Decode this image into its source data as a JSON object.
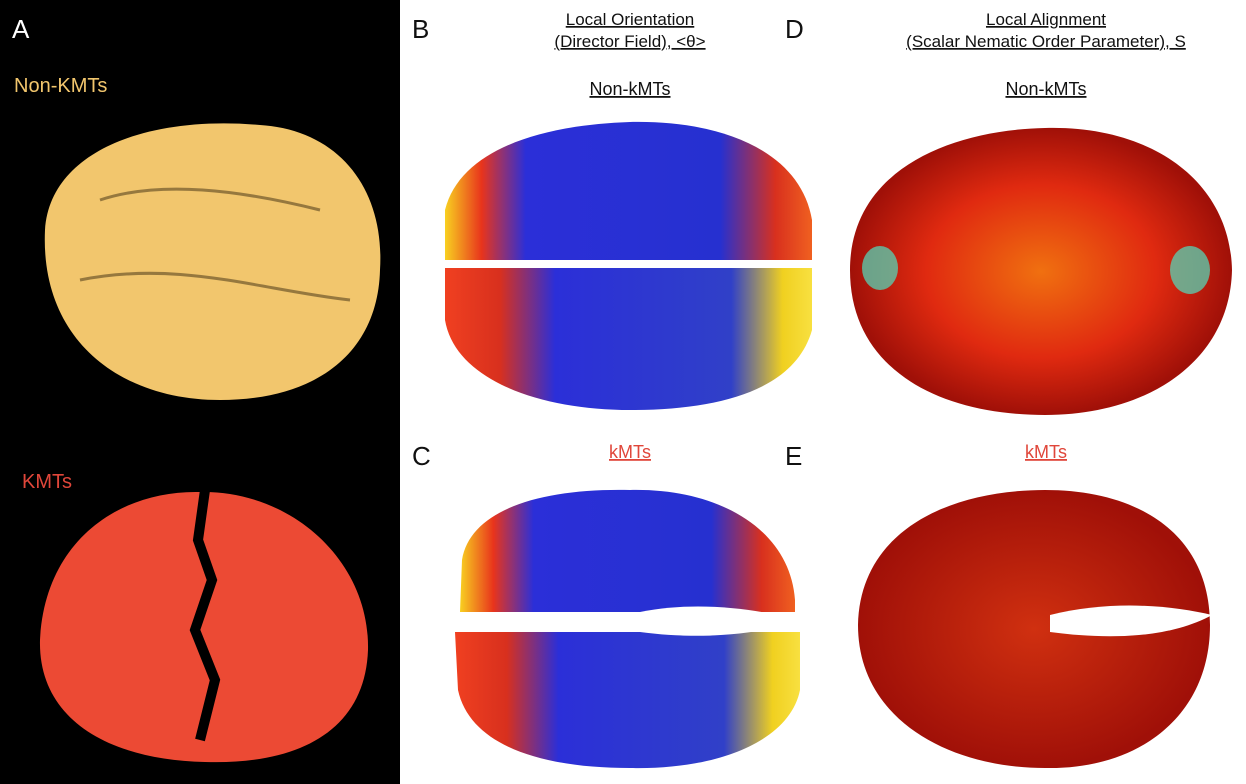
{
  "panels": {
    "a": {
      "letter": "A",
      "top_label": "Non-KMTs",
      "bottom_label": "KMTs"
    },
    "b": {
      "letter": "B",
      "title_line1": "Local Orientation",
      "title_line2": "(Director Field), <θ>",
      "label": "Non-kMTs"
    },
    "c": {
      "letter": "C",
      "label": "kMTs"
    },
    "d": {
      "letter": "D",
      "title_line1": "Local Alignment",
      "title_line2": "(Scalar Nematic Order Parameter), S",
      "label": "Non-kMTs"
    },
    "e": {
      "letter": "E",
      "label": "kMTs"
    }
  }
}
